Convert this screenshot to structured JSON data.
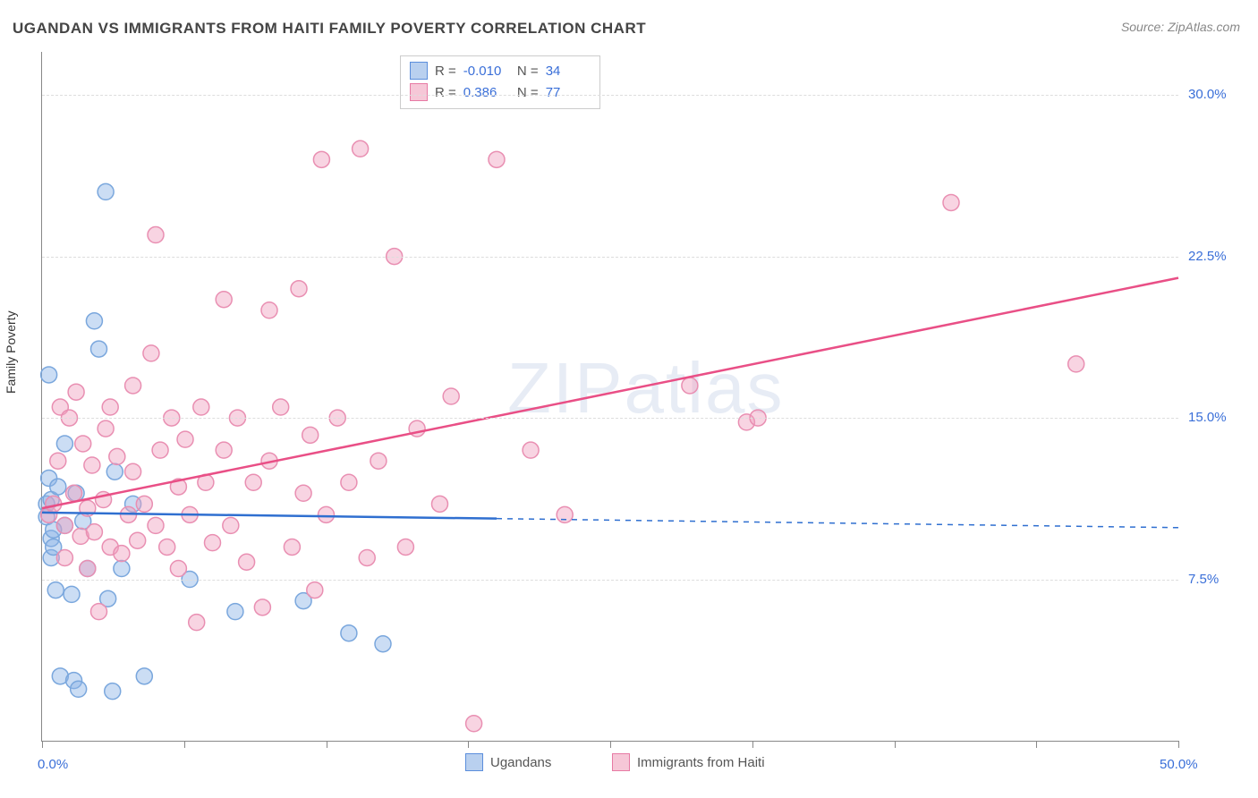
{
  "title": "UGANDAN VS IMMIGRANTS FROM HAITI FAMILY POVERTY CORRELATION CHART",
  "source": "Source: ZipAtlas.com",
  "ylabel": "Family Poverty",
  "watermark": "ZIPatlas",
  "chart": {
    "type": "scatter",
    "xlim": [
      0,
      50
    ],
    "ylim": [
      0,
      32
    ],
    "yticks": [
      7.5,
      15.0,
      22.5,
      30.0
    ],
    "ytick_labels": [
      "7.5%",
      "15.0%",
      "22.5%",
      "30.0%"
    ],
    "xticks": [
      0,
      6.25,
      12.5,
      18.75,
      25,
      31.25,
      37.5,
      43.75,
      50
    ],
    "xaxis_end_labels": {
      "left": "0.0%",
      "right": "50.0%"
    },
    "background_color": "#ffffff",
    "grid_color": "#dddddd",
    "axis_color": "#888888",
    "text_color": "#333333",
    "tick_label_color": "#3a6fd8",
    "marker_radius": 9,
    "marker_stroke_width": 1.5,
    "trend_line_width": 2.5,
    "series": [
      {
        "name": "Ugandans",
        "fill": "rgba(140,180,230,0.45)",
        "stroke": "#7aa7dd",
        "swatch_fill": "#b9d0ef",
        "swatch_stroke": "#5b8edc",
        "R": "-0.010",
        "N": "34",
        "trend": {
          "x1": 0,
          "y1": 10.6,
          "x2": 50,
          "y2": 9.9,
          "solid_until_x": 20,
          "color": "#2f6fd0"
        },
        "points": [
          [
            0.2,
            10.4
          ],
          [
            0.2,
            11.0
          ],
          [
            0.3,
            12.2
          ],
          [
            0.3,
            17.0
          ],
          [
            0.4,
            8.5
          ],
          [
            0.4,
            9.4
          ],
          [
            0.4,
            11.2
          ],
          [
            0.5,
            9.0
          ],
          [
            0.6,
            7.0
          ],
          [
            0.7,
            11.8
          ],
          [
            0.8,
            3.0
          ],
          [
            1.0,
            10.0
          ],
          [
            1.0,
            13.8
          ],
          [
            1.3,
            6.8
          ],
          [
            1.4,
            2.8
          ],
          [
            1.5,
            11.5
          ],
          [
            1.6,
            2.4
          ],
          [
            1.8,
            10.2
          ],
          [
            2.0,
            8.0
          ],
          [
            2.3,
            19.5
          ],
          [
            2.5,
            18.2
          ],
          [
            2.8,
            25.5
          ],
          [
            2.9,
            6.6
          ],
          [
            3.1,
            2.3
          ],
          [
            3.2,
            12.5
          ],
          [
            3.5,
            8.0
          ],
          [
            4.0,
            11.0
          ],
          [
            4.5,
            3.0
          ],
          [
            6.5,
            7.5
          ],
          [
            8.5,
            6.0
          ],
          [
            11.5,
            6.5
          ],
          [
            13.5,
            5.0
          ],
          [
            15.0,
            4.5
          ],
          [
            0.5,
            9.8
          ]
        ]
      },
      {
        "name": "Immigrants from Haiti",
        "fill": "rgba(240,160,190,0.45)",
        "stroke": "#e98fb2",
        "swatch_fill": "#f6c7d7",
        "swatch_stroke": "#e77aa4",
        "R": "0.386",
        "N": "77",
        "trend": {
          "x1": 0,
          "y1": 10.8,
          "x2": 50,
          "y2": 21.5,
          "solid_until_x": 50,
          "color": "#e94f86"
        },
        "points": [
          [
            0.3,
            10.5
          ],
          [
            0.5,
            11.0
          ],
          [
            0.7,
            13.0
          ],
          [
            0.8,
            15.5
          ],
          [
            1.0,
            8.5
          ],
          [
            1.0,
            10.0
          ],
          [
            1.2,
            15.0
          ],
          [
            1.4,
            11.5
          ],
          [
            1.5,
            16.2
          ],
          [
            1.7,
            9.5
          ],
          [
            1.8,
            13.8
          ],
          [
            2.0,
            8.0
          ],
          [
            2.0,
            10.8
          ],
          [
            2.2,
            12.8
          ],
          [
            2.3,
            9.7
          ],
          [
            2.5,
            6.0
          ],
          [
            2.7,
            11.2
          ],
          [
            2.8,
            14.5
          ],
          [
            3.0,
            9.0
          ],
          [
            3.0,
            15.5
          ],
          [
            3.3,
            13.2
          ],
          [
            3.5,
            8.7
          ],
          [
            3.8,
            10.5
          ],
          [
            4.0,
            12.5
          ],
          [
            4.0,
            16.5
          ],
          [
            4.2,
            9.3
          ],
          [
            4.5,
            11.0
          ],
          [
            4.8,
            18.0
          ],
          [
            5.0,
            10.0
          ],
          [
            5.0,
            23.5
          ],
          [
            5.2,
            13.5
          ],
          [
            5.5,
            9.0
          ],
          [
            5.7,
            15.0
          ],
          [
            6.0,
            8.0
          ],
          [
            6.0,
            11.8
          ],
          [
            6.3,
            14.0
          ],
          [
            6.5,
            10.5
          ],
          [
            6.8,
            5.5
          ],
          [
            7.0,
            15.5
          ],
          [
            7.2,
            12.0
          ],
          [
            7.5,
            9.2
          ],
          [
            8.0,
            13.5
          ],
          [
            8.0,
            20.5
          ],
          [
            8.3,
            10.0
          ],
          [
            8.6,
            15.0
          ],
          [
            9.0,
            8.3
          ],
          [
            9.3,
            12.0
          ],
          [
            9.7,
            6.2
          ],
          [
            10.0,
            13.0
          ],
          [
            10.0,
            20.0
          ],
          [
            10.5,
            15.5
          ],
          [
            11.0,
            9.0
          ],
          [
            11.3,
            21.0
          ],
          [
            11.5,
            11.5
          ],
          [
            11.8,
            14.2
          ],
          [
            12.0,
            7.0
          ],
          [
            12.3,
            27.0
          ],
          [
            12.5,
            10.5
          ],
          [
            13.0,
            15.0
          ],
          [
            13.5,
            12.0
          ],
          [
            14.0,
            27.5
          ],
          [
            14.3,
            8.5
          ],
          [
            14.8,
            13.0
          ],
          [
            15.5,
            22.5
          ],
          [
            16.0,
            9.0
          ],
          [
            16.5,
            14.5
          ],
          [
            17.5,
            11.0
          ],
          [
            18.0,
            16.0
          ],
          [
            19.0,
            0.8
          ],
          [
            20.0,
            27.0
          ],
          [
            21.5,
            13.5
          ],
          [
            23.0,
            10.5
          ],
          [
            28.5,
            16.5
          ],
          [
            31.0,
            14.8
          ],
          [
            31.5,
            15.0
          ],
          [
            40.0,
            25.0
          ],
          [
            45.5,
            17.5
          ]
        ]
      }
    ]
  },
  "legend_bottom": [
    {
      "label": "Ugandans",
      "swatch_fill": "#b9d0ef",
      "swatch_stroke": "#5b8edc"
    },
    {
      "label": "Immigrants from Haiti",
      "swatch_fill": "#f6c7d7",
      "swatch_stroke": "#e77aa4"
    }
  ]
}
